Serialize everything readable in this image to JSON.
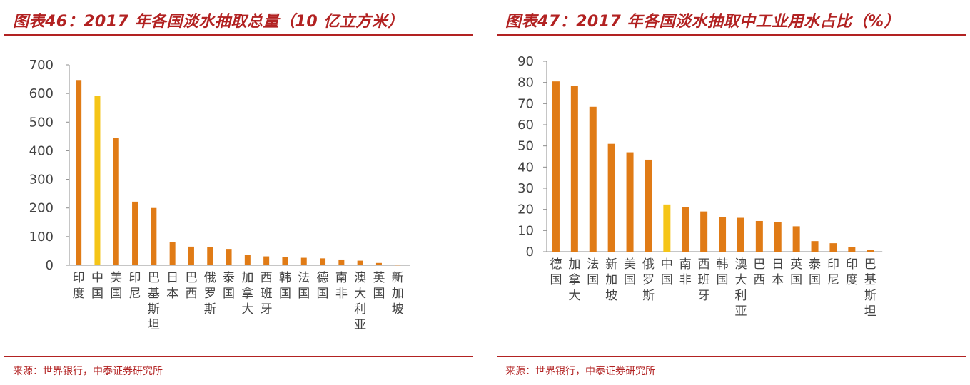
{
  "panels": [
    {
      "title": "图表46：2017 年各国淡水抽取总量（10 亿立方米）",
      "source": "来源：世界银行，中泰证券研究所"
    },
    {
      "title": "图表47：2017 年各国淡水抽取中工业用水占比（%）",
      "source": "来源：世界银行，中泰证券研究所"
    }
  ],
  "colors": {
    "bar": "#e07b16",
    "highlight": "#f5c518",
    "title": "#b22222",
    "axis": "#8c8c8c"
  },
  "chart_data": [
    {
      "type": "bar",
      "title": "图表46：2017 年各国淡水抽取总量（10 亿立方米）",
      "categories": [
        "印度",
        "中国",
        "美国",
        "印尼",
        "巴基斯坦",
        "日本",
        "巴西",
        "俄罗斯",
        "泰国",
        "加拿大",
        "西班牙",
        "韩国",
        "法国",
        "德国",
        "南非",
        "澳大利亚",
        "英国",
        "新加坡"
      ],
      "values": [
        647,
        591,
        444,
        222,
        200,
        80,
        65,
        63,
        57,
        36,
        31,
        29,
        26,
        24,
        20,
        16,
        8,
        0.5
      ],
      "highlight": "中国",
      "ylim": [
        0,
        700
      ],
      "yticks": [
        0,
        100,
        200,
        300,
        400,
        500,
        600,
        700
      ],
      "xlabel": "",
      "ylabel": "",
      "grid": false,
      "legend": "none"
    },
    {
      "type": "bar",
      "title": "图表47：2017 年各国淡水抽取中工业用水占比（%）",
      "categories": [
        "德国",
        "加拿大",
        "法国",
        "新加坡",
        "美国",
        "俄罗斯",
        "中国",
        "南非",
        "西班牙",
        "韩国",
        "澳大利亚",
        "巴西",
        "日本",
        "英国",
        "泰国",
        "印尼",
        "印度",
        "巴基斯坦"
      ],
      "values": [
        80.5,
        78.5,
        68.5,
        51,
        47,
        43.5,
        22.3,
        21,
        19,
        16.5,
        16,
        14.5,
        14,
        12,
        5,
        4,
        2.3,
        0.8
      ],
      "highlight": "中国",
      "ylim": [
        0,
        90
      ],
      "yticks": [
        0,
        10,
        20,
        30,
        40,
        50,
        60,
        70,
        80,
        90
      ],
      "xlabel": "",
      "ylabel": "",
      "grid": false,
      "legend": "none"
    }
  ]
}
